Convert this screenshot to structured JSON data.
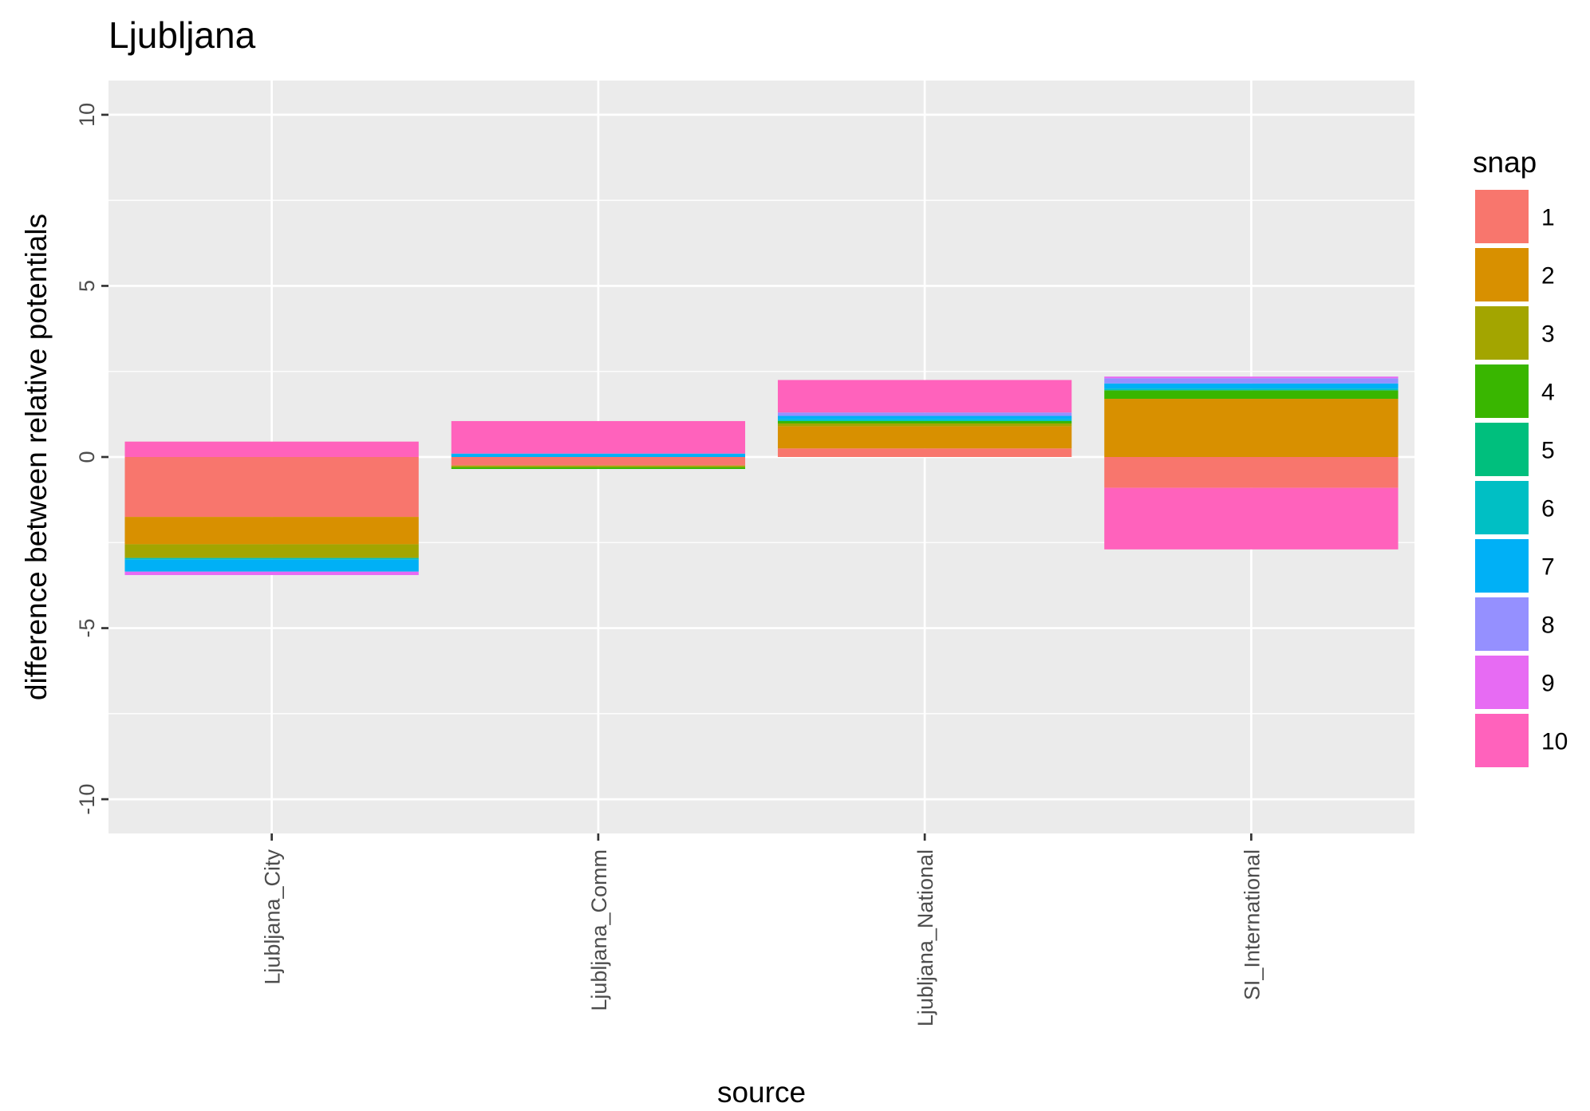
{
  "chart_data": {
    "type": "bar",
    "stacked": true,
    "title": "Ljubljana",
    "xlabel": "source",
    "ylabel": "difference between relative potentials",
    "ylim": [
      -11,
      11
    ],
    "yticks": [
      -10,
      -5,
      0,
      5,
      10
    ],
    "categories": [
      "Ljubljana_City",
      "Ljubljana_Comm",
      "Ljubljana_National",
      "SI_International"
    ],
    "grid": true,
    "legend": {
      "title": "snap",
      "position": "right",
      "entries": [
        "1",
        "2",
        "3",
        "4",
        "5",
        "6",
        "7",
        "8",
        "9",
        "10"
      ]
    },
    "series": [
      {
        "name": "1",
        "color": "#F8766D",
        "values": [
          -1.75,
          -0.25,
          0.25,
          -0.9
        ]
      },
      {
        "name": "2",
        "color": "#D89000",
        "values": [
          -0.8,
          0,
          0.65,
          1.7
        ]
      },
      {
        "name": "3",
        "color": "#A3A500",
        "values": [
          -0.4,
          -0.05,
          0.08,
          0
        ]
      },
      {
        "name": "4",
        "color": "#39B600",
        "values": [
          0,
          -0.05,
          0.07,
          0.25
        ]
      },
      {
        "name": "5",
        "color": "#00BF7D",
        "values": [
          0,
          0,
          0,
          0
        ]
      },
      {
        "name": "6",
        "color": "#00BFC4",
        "values": [
          -0.05,
          0,
          0.05,
          0.05
        ]
      },
      {
        "name": "7",
        "color": "#00B0F6",
        "values": [
          -0.35,
          0.1,
          0.1,
          0.15
        ]
      },
      {
        "name": "8",
        "color": "#9590FF",
        "values": [
          0,
          0,
          0.1,
          0.15
        ]
      },
      {
        "name": "9",
        "color": "#E76BF3",
        "values": [
          -0.1,
          0,
          0,
          0.05
        ]
      },
      {
        "name": "10",
        "color": "#FF62BC",
        "values": [
          0.45,
          0.95,
          0.95,
          -1.8
        ]
      }
    ]
  }
}
